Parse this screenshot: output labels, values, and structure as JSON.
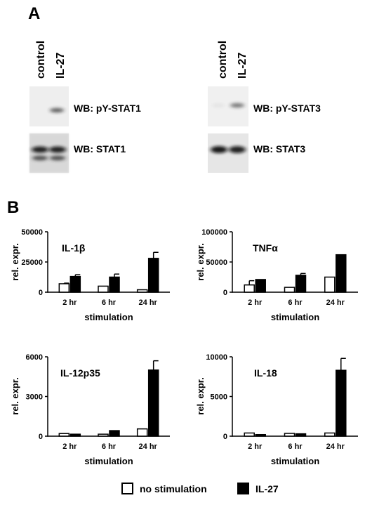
{
  "panel_a": {
    "letter": "A",
    "blots": [
      {
        "lanes": [
          "control",
          "IL-27"
        ],
        "rows": [
          {
            "label": "WB: pY-STAT1",
            "band_control": 0.0,
            "band_il27": 0.65
          },
          {
            "label": "WB: STAT1",
            "band_control": 0.9,
            "band_il27": 0.9
          }
        ]
      },
      {
        "lanes": [
          "control",
          "IL-27"
        ],
        "rows": [
          {
            "label": "WB: pY-STAT3",
            "band_control": 0.05,
            "band_il27": 0.55
          },
          {
            "label": "WB: STAT3",
            "band_control": 0.95,
            "band_il27": 0.9
          }
        ]
      }
    ]
  },
  "panel_b": {
    "letter": "B"
  },
  "legend": {
    "items": [
      {
        "label": "no stimulation",
        "color": "#ffffff"
      },
      {
        "label": "IL-27",
        "color": "#000000"
      }
    ]
  },
  "chart_data": [
    {
      "type": "bar",
      "title": "IL-1β",
      "xlabel": "stimulation",
      "ylabel": "rel. expr.",
      "categories": [
        "2 hr",
        "6 hr",
        "24 hr"
      ],
      "ylim": [
        0,
        50000
      ],
      "yticks": [
        "0",
        "25000",
        "50000"
      ],
      "series": [
        {
          "name": "no stimulation",
          "values": [
            7000,
            5000,
            2000
          ],
          "errors": [
            500,
            0,
            0
          ]
        },
        {
          "name": "IL-27",
          "values": [
            13000,
            12500,
            28000
          ],
          "errors": [
            1500,
            2500,
            5000
          ]
        }
      ]
    },
    {
      "type": "bar",
      "title": "TNFα",
      "xlabel": "stimulation",
      "ylabel": "rel. expr.",
      "categories": [
        "2 hr",
        "6 hr",
        "24 hr"
      ],
      "ylim": [
        0,
        100000
      ],
      "yticks": [
        "0",
        "50000",
        "100000"
      ],
      "series": [
        {
          "name": "no stimulation",
          "values": [
            12000,
            8000,
            25000
          ],
          "errors": [
            7000,
            0,
            0
          ]
        },
        {
          "name": "IL-27",
          "values": [
            21000,
            28000,
            62000
          ],
          "errors": [
            0,
            3000,
            0
          ]
        }
      ]
    },
    {
      "type": "bar",
      "title": "IL-12p35",
      "xlabel": "stimulation",
      "ylabel": "rel. expr.",
      "categories": [
        "2 hr",
        "6 hr",
        "24 hr"
      ],
      "ylim": [
        0,
        6000
      ],
      "yticks": [
        "0",
        "3000",
        "6000"
      ],
      "series": [
        {
          "name": "no stimulation",
          "values": [
            200,
            150,
            550
          ],
          "errors": [
            0,
            0,
            0
          ]
        },
        {
          "name": "IL-27",
          "values": [
            150,
            420,
            5000
          ],
          "errors": [
            0,
            0,
            700
          ]
        }
      ]
    },
    {
      "type": "bar",
      "title": "IL-18",
      "xlabel": "stimulation",
      "ylabel": "rel. expr.",
      "categories": [
        "2 hr",
        "6 hr",
        "24 hr"
      ],
      "ylim": [
        0,
        10000
      ],
      "yticks": [
        "0",
        "5000",
        "10000"
      ],
      "series": [
        {
          "name": "no stimulation",
          "values": [
            400,
            350,
            400
          ],
          "errors": [
            0,
            0,
            0
          ]
        },
        {
          "name": "IL-27",
          "values": [
            200,
            300,
            8300
          ],
          "errors": [
            0,
            0,
            1500
          ]
        }
      ]
    }
  ]
}
